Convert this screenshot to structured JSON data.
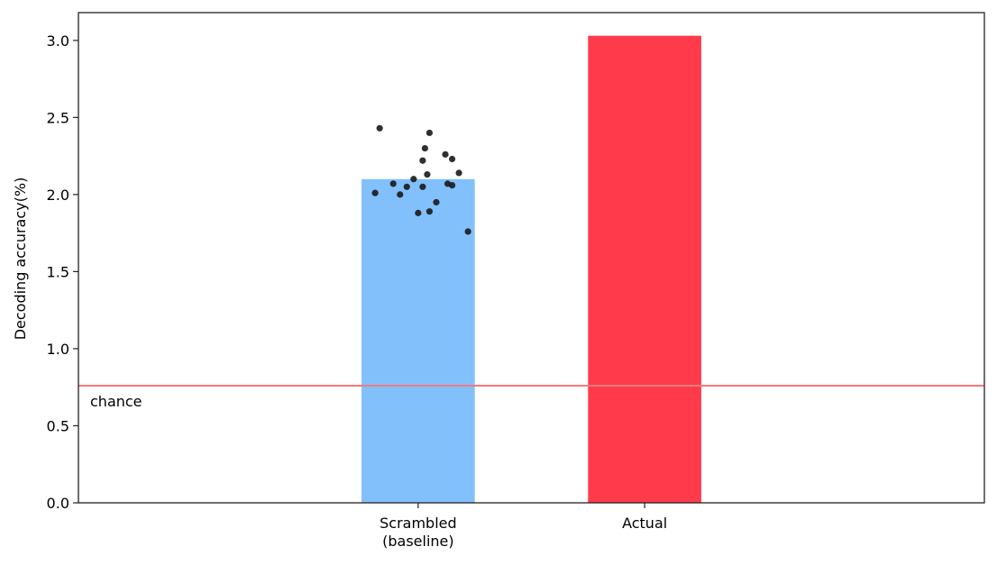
{
  "chart_data": {
    "type": "bar",
    "title": "",
    "xlabel": "",
    "ylabel": "Decoding accuracy(%)",
    "ylim": [
      0,
      3.18
    ],
    "yticks": [
      "0.0",
      "0.5",
      "1.0",
      "1.5",
      "2.0",
      "2.5",
      "3.0"
    ],
    "grid": false,
    "categories": [
      {
        "lines": [
          "Scrambled",
          "(baseline)"
        ]
      },
      {
        "lines": [
          "Actual"
        ]
      }
    ],
    "values": [
      2.1,
      3.03
    ],
    "bar_colors": [
      "#82c0fc",
      "#ff3b4b"
    ],
    "chance_line": {
      "value": 0.76,
      "label": "chance",
      "color": "#f47a7a"
    },
    "scatter": {
      "category_index": 0,
      "color": "#1a1a1a",
      "points": [
        {
          "x": -0.17,
          "y": 2.43
        },
        {
          "x": 0.05,
          "y": 2.4
        },
        {
          "x": 0.03,
          "y": 2.3
        },
        {
          "x": 0.12,
          "y": 2.26
        },
        {
          "x": 0.15,
          "y": 2.23
        },
        {
          "x": 0.02,
          "y": 2.22
        },
        {
          "x": 0.18,
          "y": 2.14
        },
        {
          "x": 0.04,
          "y": 2.13
        },
        {
          "x": -0.02,
          "y": 2.1
        },
        {
          "x": -0.11,
          "y": 2.07
        },
        {
          "x": 0.13,
          "y": 2.07
        },
        {
          "x": 0.15,
          "y": 2.06
        },
        {
          "x": -0.05,
          "y": 2.05
        },
        {
          "x": 0.02,
          "y": 2.05
        },
        {
          "x": -0.19,
          "y": 2.01
        },
        {
          "x": -0.08,
          "y": 2.0
        },
        {
          "x": 0.08,
          "y": 1.95
        },
        {
          "x": 0.05,
          "y": 1.89
        },
        {
          "x": 0.0,
          "y": 1.88
        },
        {
          "x": 0.22,
          "y": 1.76
        }
      ]
    }
  }
}
